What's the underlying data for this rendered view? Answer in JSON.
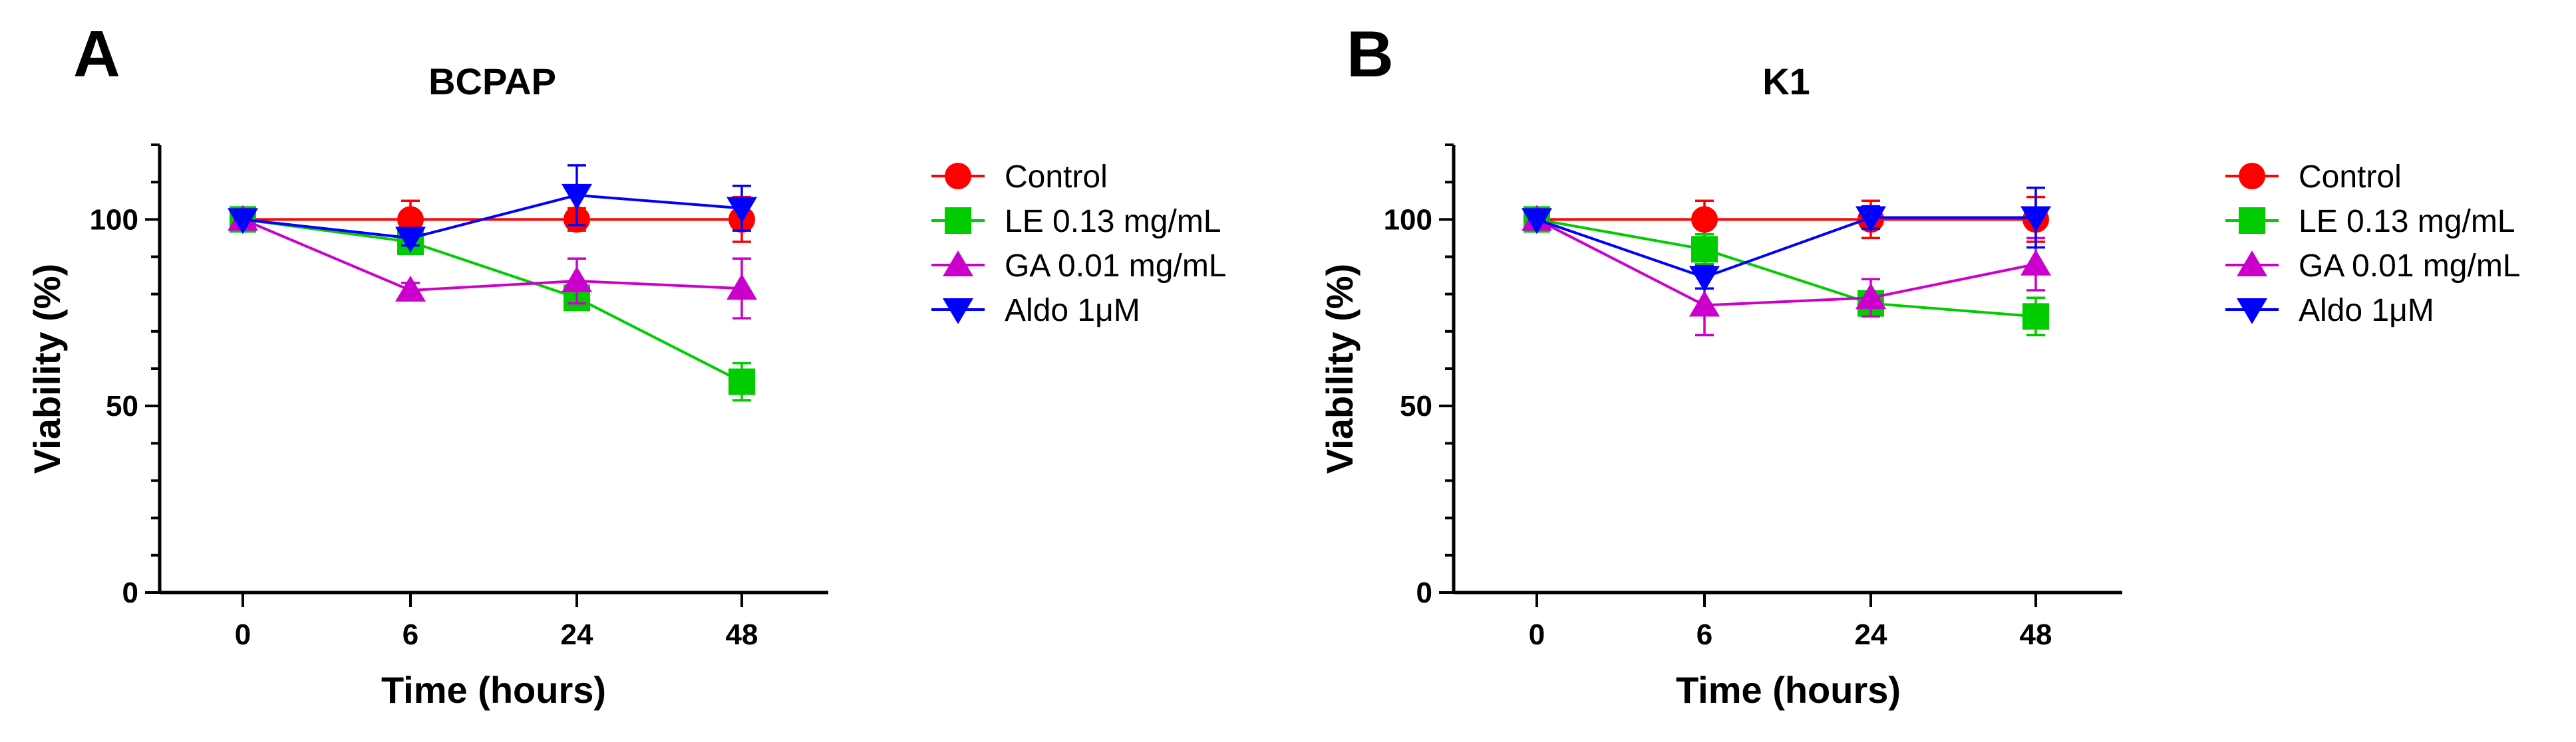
{
  "panels": [
    {
      "letter": "A",
      "chart_data": {
        "type": "line",
        "title": "BCPAP",
        "xlabel": "Time (hours)",
        "ylabel": "Viability (%)",
        "categories": [
          "0",
          "6",
          "24",
          "48"
        ],
        "ylim": [
          0,
          120
        ],
        "yticks": [
          0,
          50,
          100
        ],
        "series": [
          {
            "name": "Control",
            "color": "#ff0000",
            "marker": "circle",
            "values": [
              100,
              100,
              100,
              100
            ],
            "errors": [
              0,
              5,
              3,
              6
            ]
          },
          {
            "name": "LE 0.13 mg/mL",
            "color": "#00cc00",
            "marker": "square",
            "values": [
              100,
              94,
              79,
              56.5
            ],
            "errors": [
              0,
              3,
              2,
              5
            ]
          },
          {
            "name": "GA 0.01 mg/mL",
            "color": "#cc00cc",
            "marker": "triangle-up",
            "values": [
              100,
              81,
              83.5,
              81.5
            ],
            "errors": [
              0,
              2,
              6,
              8
            ]
          },
          {
            "name": "Aldo 1μM",
            "color": "#0000ff",
            "marker": "triangle-down",
            "values": [
              100,
              95,
              106.5,
              103
            ],
            "errors": [
              0,
              2,
              8,
              6
            ]
          }
        ]
      }
    },
    {
      "letter": "B",
      "chart_data": {
        "type": "line",
        "title": "K1",
        "xlabel": "Time (hours)",
        "ylabel": "Viability (%)",
        "categories": [
          "0",
          "6",
          "24",
          "48"
        ],
        "ylim": [
          0,
          120
        ],
        "yticks": [
          0,
          50,
          100
        ],
        "series": [
          {
            "name": "Control",
            "color": "#ff0000",
            "marker": "circle",
            "values": [
              100,
              100,
              100,
              100
            ],
            "errors": [
              0,
              5,
              5,
              6
            ]
          },
          {
            "name": "LE 0.13 mg/mL",
            "color": "#00cc00",
            "marker": "square",
            "values": [
              100,
              92,
              77.5,
              74
            ],
            "errors": [
              0,
              4,
              3,
              5
            ]
          },
          {
            "name": "GA 0.01 mg/mL",
            "color": "#cc00cc",
            "marker": "triangle-up",
            "values": [
              100,
              77,
              79,
              88
            ],
            "errors": [
              0,
              8,
              5,
              7
            ]
          },
          {
            "name": "Aldo 1μM",
            "color": "#0000ff",
            "marker": "triangle-down",
            "values": [
              100,
              84.5,
              100.5,
              100.5
            ],
            "errors": [
              0,
              3,
              3,
              8
            ]
          }
        ]
      }
    }
  ]
}
